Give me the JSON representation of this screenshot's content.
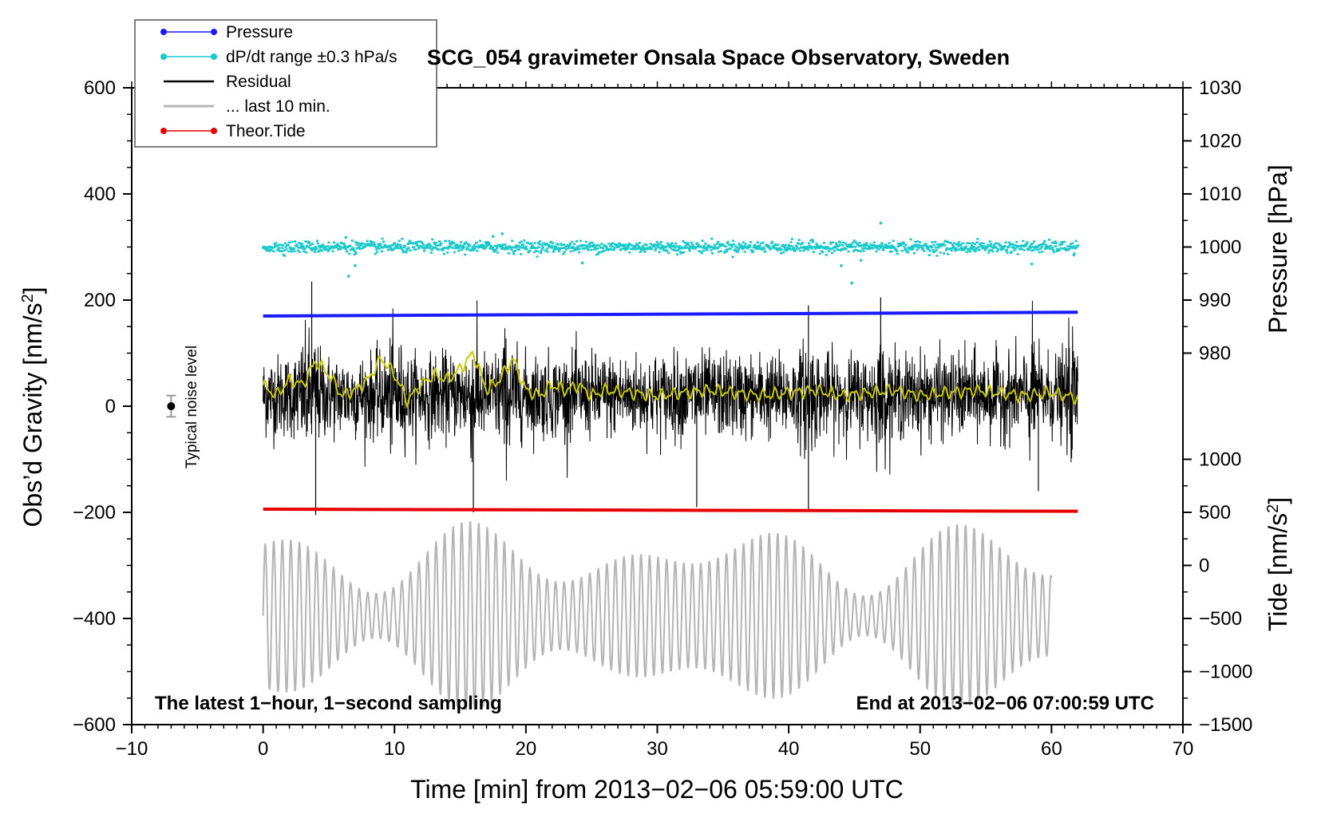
{
  "chart_data": {
    "type": "line",
    "title": "SCG_054 gravimeter Onsala Space Observatory, Sweden",
    "xlabel": "Time [min] from 2013−02−06 05:59:00 UTC",
    "ylabel_left_main": "Obs’d Gravity [nm/s",
    "ylabel_left_sup": "2",
    "ylabel_left_end": "]",
    "ylabel_right_pressure": "Pressure [hPa]",
    "ylabel_right_tide_main": "Tide [nm/s",
    "ylabel_right_tide_sup": "2",
    "ylabel_right_tide_end": "]",
    "footer_left": "The latest 1−hour, 1−second sampling",
    "footer_right": "End at 2013−02−06 07:00:59 UTC",
    "noise_label": "Typical noise level",
    "xlim": [
      -10,
      70
    ],
    "ylim": [
      -600,
      600
    ],
    "x_ticks": [
      -10,
      0,
      10,
      20,
      30,
      40,
      50,
      60,
      70
    ],
    "x_tick_labels": [
      "−10",
      "0",
      "10",
      "20",
      "30",
      "40",
      "50",
      "60",
      "70"
    ],
    "y_ticks": [
      600,
      400,
      200,
      0,
      -200,
      -400,
      -600
    ],
    "y_tick_labels": [
      "600",
      "400",
      "200",
      "0",
      "−200",
      "−400",
      "−600"
    ],
    "pressure_axis": {
      "ticks": [
        1030,
        1020,
        1010,
        1000,
        990,
        980
      ],
      "tick_labels": [
        "1030",
        "1020",
        "1010",
        "1000",
        "990",
        "980"
      ],
      "ticks_at_gravity": [
        600,
        500,
        400,
        300,
        200,
        100
      ]
    },
    "tide_axis": {
      "ticks": [
        1000,
        500,
        0,
        -500,
        -1000,
        -1500
      ],
      "tick_labels": [
        "1000",
        "500",
        "0",
        "−500",
        "−1000",
        "−1500"
      ],
      "ticks_at_gravity": [
        -100,
        -200,
        -300,
        -400,
        -500,
        -600
      ]
    },
    "legend": [
      {
        "label": "Pressure",
        "color": "#1a1aff",
        "marker": true
      },
      {
        "label": "dP/dt range ±0.3 hPa/s",
        "color": "#19c8c8",
        "marker": true
      },
      {
        "label": "Residual",
        "color": "#000000",
        "marker": false
      },
      {
        "label": "... last 10 min.",
        "color": "#b4b4b4",
        "marker": false
      },
      {
        "label": "Theor.Tide",
        "color": "#e60000",
        "marker": true
      }
    ],
    "noise_marker": {
      "x": -7,
      "y": 0,
      "err": 20
    },
    "series": [
      {
        "name": "Pressure",
        "color": "#1a1aff",
        "x": [
          0,
          62
        ],
        "y": [
          170,
          177
        ]
      },
      {
        "name": "dP/dt range ±0.3 hPa/s",
        "color": "#19c8c8",
        "x": [
          0,
          62
        ],
        "y": [
          300,
          300
        ],
        "scatter_spread": 10
      },
      {
        "name": "Residual",
        "color": "#000000",
        "x_range": [
          0,
          62
        ],
        "center": 20,
        "spread": 70,
        "max": 235,
        "min": -205
      },
      {
        "name": "Residual (smoothed)",
        "color": "#c8c800",
        "x": [
          0,
          1,
          2,
          3,
          4,
          5,
          6,
          7,
          8,
          9,
          10,
          11,
          12,
          13,
          14,
          15,
          16,
          17,
          18,
          19,
          20,
          21,
          22,
          23,
          24,
          25,
          26,
          28,
          30,
          32,
          34,
          36,
          38,
          40,
          42,
          44,
          46,
          48,
          50,
          52,
          54,
          56,
          58,
          60,
          62
        ],
        "y": [
          40,
          20,
          50,
          40,
          85,
          60,
          20,
          30,
          50,
          90,
          60,
          10,
          40,
          60,
          50,
          70,
          100,
          30,
          50,
          90,
          30,
          20,
          40,
          30,
          40,
          20,
          30,
          25,
          20,
          25,
          30,
          25,
          20,
          25,
          30,
          20,
          25,
          30,
          20,
          25,
          30,
          25,
          20,
          25,
          15
        ]
      },
      {
        "name": "Theor.Tide",
        "color": "#e60000",
        "x": [
          0,
          62
        ],
        "y": [
          -194,
          -198
        ]
      },
      {
        "name": "... last 10 min.",
        "color": "#b4b4b4",
        "x_range": [
          0,
          60
        ],
        "center": -395,
        "amplitude_range": [
          20,
          180
        ],
        "cycle_minutes": 0.65
      }
    ]
  }
}
